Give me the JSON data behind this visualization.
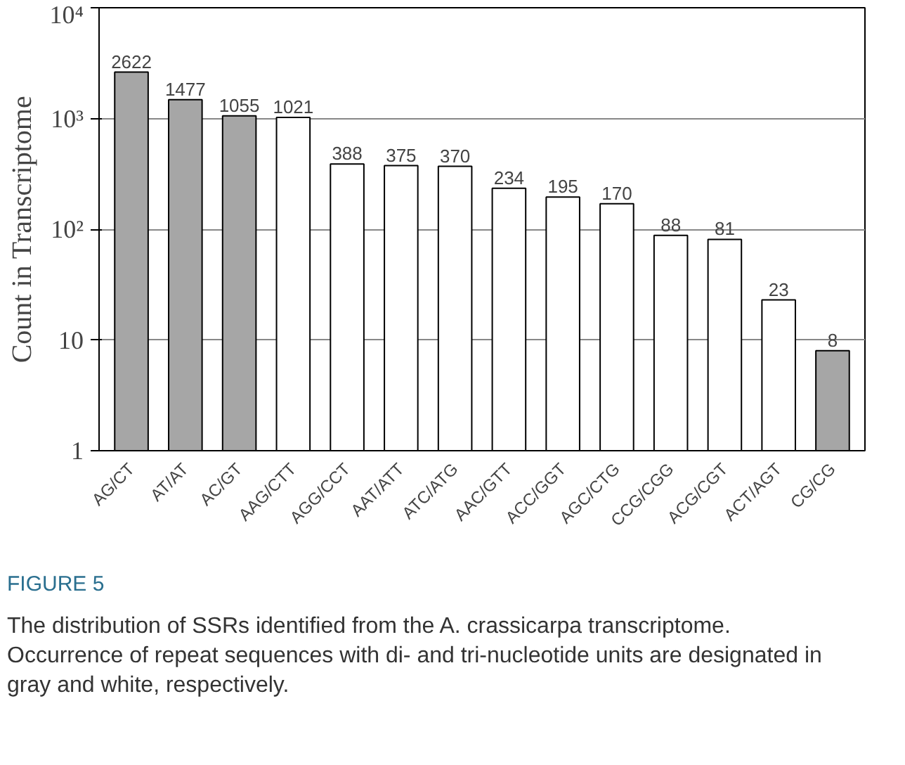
{
  "chart_data": {
    "type": "bar",
    "ylabel": "Count in Transcriptome",
    "categories": [
      "AG/CT",
      "AT/AT",
      "AC/GT",
      "AAG/CTT",
      "AGG/CCT",
      "AAT/ATT",
      "ATC/ATG",
      "AAC/GTT",
      "ACC/GGT",
      "AGC/CTG",
      "CCG/CGG",
      "ACG/CGT",
      "ACT/AGT",
      "CG/CG"
    ],
    "values": [
      2622,
      1477,
      1055,
      1021,
      388,
      375,
      370,
      234,
      195,
      170,
      88,
      81,
      23,
      8
    ],
    "colors": [
      "#a6a6a6",
      "#a6a6a6",
      "#a6a6a6",
      "#ffffff",
      "#ffffff",
      "#ffffff",
      "#ffffff",
      "#ffffff",
      "#ffffff",
      "#ffffff",
      "#ffffff",
      "#ffffff",
      "#ffffff",
      "#a6a6a6"
    ],
    "log": "y",
    "ylim": [
      1,
      10000
    ],
    "yticks": [
      1,
      10,
      {
        "value": 100,
        "label": "10²"
      },
      {
        "value": 1000,
        "label": "10³"
      },
      {
        "value": 10000,
        "label": "10⁴"
      }
    ],
    "grid": "y",
    "data_labels": true,
    "annotations": [
      "FIGURE 5",
      "The distribution of SSRs identified from the A. crassicarpa transcriptome. Occurrence of repeat sequences with di- and tri-nucleotide units are designated in gray and white, respectively."
    ]
  }
}
